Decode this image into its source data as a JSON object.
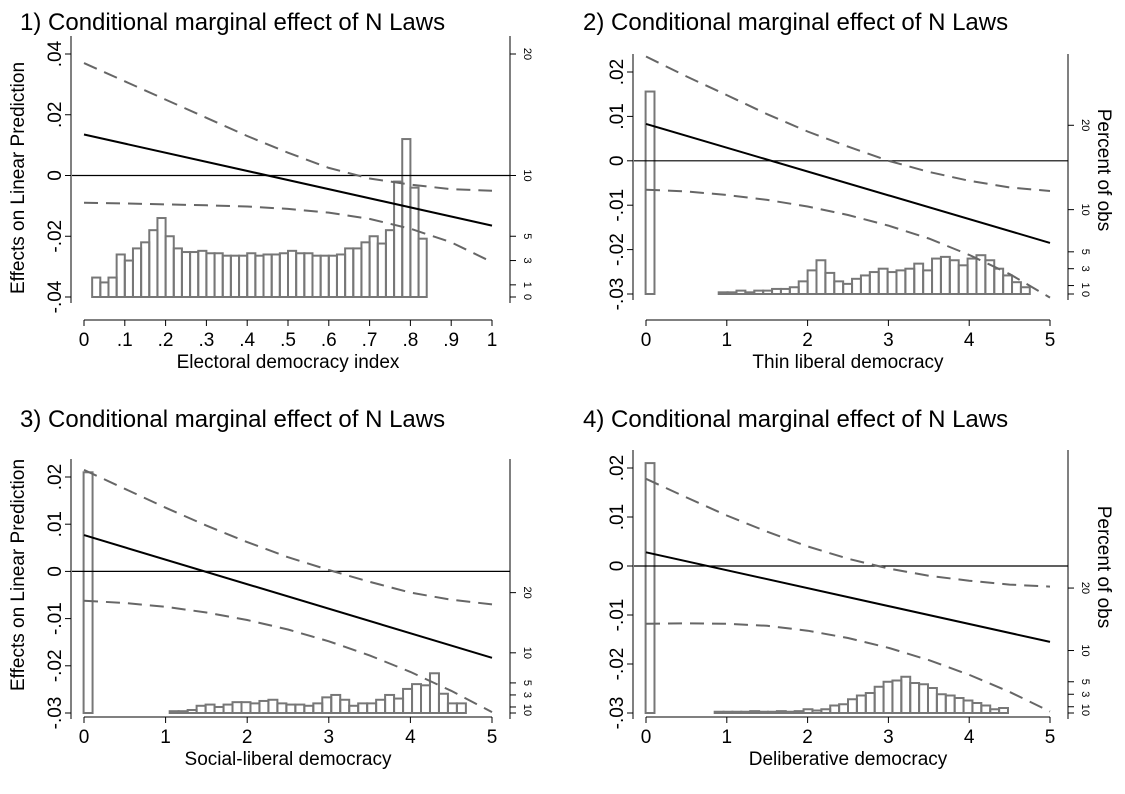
{
  "chart_data": [
    {
      "type": "line",
      "title": "1) Conditional marginal effect of N Laws",
      "xlabel": "Electoral democracy index",
      "ylabel": "Effects on Linear Prediction",
      "right_label": "",
      "xlim": [
        0,
        1
      ],
      "ylim": [
        -0.04,
        0.04
      ],
      "x_ticks": [
        0,
        0.1,
        0.2,
        0.3,
        0.4,
        0.5,
        0.6,
        0.7,
        0.8,
        0.9,
        1
      ],
      "x_tick_labels": [
        "0",
        ".1",
        ".2",
        ".3",
        ".4",
        ".5",
        ".6",
        ".7",
        ".8",
        ".9",
        "1"
      ],
      "y_ticks": [
        -0.04,
        -0.02,
        0,
        0.02,
        0.04
      ],
      "y_tick_labels": [
        "-.04",
        "-.02",
        "0",
        ".02",
        ".04"
      ],
      "right_ticks": [
        0,
        1,
        3,
        5,
        10,
        20
      ],
      "right_tick_labels": [
        "0",
        "1",
        "3",
        "5",
        "10",
        "20"
      ],
      "right_max": 20,
      "right_zero": -0.04,
      "right_top": 0.04,
      "effect_line": {
        "x": [
          0,
          1
        ],
        "y": [
          0.0135,
          -0.0165
        ]
      },
      "ci_upper": {
        "x": [
          0,
          0.1,
          0.2,
          0.3,
          0.4,
          0.5,
          0.6,
          0.7,
          0.8,
          0.9,
          1
        ],
        "y": [
          0.037,
          0.031,
          0.025,
          0.019,
          0.013,
          0.0075,
          0.0025,
          -0.001,
          -0.003,
          -0.0045,
          -0.005
        ]
      },
      "ci_lower": {
        "x": [
          0,
          0.1,
          0.2,
          0.3,
          0.4,
          0.5,
          0.6,
          0.7,
          0.8,
          0.9,
          1
        ],
        "y": [
          -0.009,
          -0.0092,
          -0.0095,
          -0.0098,
          -0.0102,
          -0.011,
          -0.0122,
          -0.0143,
          -0.0175,
          -0.022,
          -0.0285
        ]
      },
      "histogram": {
        "start": 0.02,
        "width": 0.02,
        "values": [
          1.6,
          1.2,
          1.6,
          3.5,
          3.0,
          4.0,
          4.5,
          5.5,
          6.5,
          5.0,
          4.0,
          3.7,
          3.7,
          3.8,
          3.6,
          3.6,
          3.4,
          3.4,
          3.4,
          3.6,
          3.4,
          3.5,
          3.5,
          3.6,
          3.8,
          3.6,
          3.6,
          3.4,
          3.4,
          3.4,
          3.5,
          4.0,
          4.0,
          4.5,
          5.0,
          4.4,
          5.5,
          9.5,
          13.0,
          9.0,
          4.8
        ]
      }
    },
    {
      "type": "line",
      "title": "2) Conditional marginal effect of N Laws",
      "xlabel": "Thin liberal democracy",
      "ylabel": "",
      "right_label": "Percent of obs",
      "xlim": [
        0,
        5
      ],
      "ylim": [
        -0.03,
        0.02
      ],
      "x_ticks": [
        0,
        1,
        2,
        3,
        4,
        5
      ],
      "x_tick_labels": [
        "0",
        "1",
        "2",
        "3",
        "4",
        "5"
      ],
      "y_ticks": [
        -0.03,
        -0.02,
        -0.01,
        0,
        0.01,
        0.02
      ],
      "y_tick_labels": [
        "-.03",
        "-.02",
        "-.01",
        "0",
        ".01",
        ".02"
      ],
      "right_ticks": [
        0,
        1,
        3,
        5,
        10,
        20
      ],
      "right_tick_labels": [
        "0",
        "1",
        "3",
        "5",
        "10",
        "20"
      ],
      "right_max": 20,
      "right_zero": -0.03,
      "right_top": 0.008,
      "effect_line": {
        "x": [
          0,
          5
        ],
        "y": [
          0.0083,
          -0.0185
        ]
      },
      "ci_upper": {
        "x": [
          0,
          0.5,
          1,
          1.5,
          2,
          2.5,
          3,
          3.5,
          4,
          4.5,
          5
        ],
        "y": [
          0.0235,
          0.019,
          0.0148,
          0.0105,
          0.0066,
          0.0032,
          0.0,
          -0.0025,
          -0.0045,
          -0.006,
          -0.0068
        ]
      },
      "ci_lower": {
        "x": [
          0,
          0.5,
          1,
          1.5,
          2,
          2.5,
          3,
          3.5,
          4,
          4.5,
          5
        ],
        "y": [
          -0.0065,
          -0.0069,
          -0.0077,
          -0.0088,
          -0.0103,
          -0.0122,
          -0.0146,
          -0.0175,
          -0.0212,
          -0.0255,
          -0.0308
        ]
      },
      "histogram": {
        "start": 0.05,
        "width": 0.11,
        "spike": {
          "x": 0.05,
          "value": 24
        },
        "bars_start": 0.9,
        "values": [
          0.2,
          0.2,
          0.4,
          0.2,
          0.4,
          0.4,
          0.6,
          0.6,
          0.8,
          1.5,
          2.8,
          4.0,
          2.5,
          1.5,
          1.2,
          1.8,
          2.2,
          2.6,
          3.0,
          2.6,
          2.8,
          3.0,
          3.6,
          2.8,
          4.2,
          4.4,
          4.0,
          3.4,
          4.2,
          4.6,
          4.0,
          3.0,
          2.2,
          1.4,
          0.8
        ]
      }
    },
    {
      "type": "line",
      "title": "3) Conditional marginal effect of N Laws",
      "xlabel": "Social-liberal democracy",
      "ylabel": "Effects on Linear Prediction",
      "right_label": "",
      "xlim": [
        0,
        5
      ],
      "ylim": [
        -0.03,
        0.02
      ],
      "x_ticks": [
        0,
        1,
        2,
        3,
        4,
        5
      ],
      "x_tick_labels": [
        "0",
        "1",
        "2",
        "3",
        "4",
        "5"
      ],
      "y_ticks": [
        -0.03,
        -0.02,
        -0.01,
        0,
        0.01,
        0.02
      ],
      "y_tick_labels": [
        "-.03",
        "-.02",
        "-.01",
        "0",
        ".01",
        ".02"
      ],
      "right_ticks": [
        0,
        1,
        3,
        5,
        10,
        20
      ],
      "right_tick_labels": [
        "0",
        "1",
        "3",
        "5",
        "10",
        "20"
      ],
      "right_max": 20,
      "right_zero": -0.03,
      "right_top": -0.0045,
      "effect_line": {
        "x": [
          0,
          5
        ],
        "y": [
          0.0077,
          -0.0183
        ]
      },
      "ci_upper": {
        "x": [
          0,
          0.5,
          1,
          1.5,
          2,
          2.5,
          3,
          3.5,
          4,
          4.5,
          5
        ],
        "y": [
          0.0215,
          0.0175,
          0.0135,
          0.0097,
          0.0062,
          0.003,
          0.0003,
          -0.0022,
          -0.0045,
          -0.006,
          -0.007
        ]
      },
      "ci_lower": {
        "x": [
          0,
          0.5,
          1,
          1.5,
          2,
          2.5,
          3,
          3.5,
          4,
          4.5,
          5
        ],
        "y": [
          -0.0062,
          -0.0067,
          -0.0075,
          -0.0087,
          -0.0103,
          -0.0123,
          -0.0148,
          -0.0178,
          -0.0213,
          -0.0253,
          -0.0298
        ]
      },
      "histogram": {
        "start": 0.05,
        "width": 0.11,
        "spike": {
          "x": 0.05,
          "value": 40
        },
        "bars_start": 1.05,
        "values": [
          0.3,
          0.3,
          0.5,
          1.2,
          1.4,
          1.0,
          1.4,
          1.8,
          1.8,
          1.6,
          2.0,
          2.2,
          1.6,
          1.4,
          1.4,
          1.2,
          1.6,
          2.6,
          3.0,
          2.2,
          1.2,
          1.6,
          1.6,
          2.2,
          3.0,
          2.4,
          4.0,
          4.8,
          4.6,
          6.6,
          3.2,
          1.6,
          1.6
        ]
      }
    },
    {
      "type": "line",
      "title": "4) Conditional marginal effect of N Laws",
      "xlabel": "Deliberative democracy",
      "ylabel": "",
      "right_label": "Percent of obs",
      "xlim": [
        0,
        5
      ],
      "ylim": [
        -0.03,
        0.02
      ],
      "x_ticks": [
        0,
        1,
        2,
        3,
        4,
        5
      ],
      "x_tick_labels": [
        "0",
        "1",
        "2",
        "3",
        "4",
        "5"
      ],
      "y_ticks": [
        -0.03,
        -0.02,
        -0.01,
        0,
        0.01,
        0.02
      ],
      "y_tick_labels": [
        "-.03",
        "-.02",
        "-.01",
        "0",
        ".01",
        ".02"
      ],
      "right_ticks": [
        0,
        1,
        3,
        5,
        10,
        20
      ],
      "right_tick_labels": [
        "0",
        "1",
        "3",
        "5",
        "10",
        "20"
      ],
      "right_max": 20,
      "right_zero": -0.03,
      "right_top": -0.0045,
      "effect_line": {
        "x": [
          0,
          5
        ],
        "y": [
          0.0028,
          -0.0155
        ]
      },
      "ci_upper": {
        "x": [
          0,
          0.5,
          1,
          1.5,
          2,
          2.5,
          3,
          3.5,
          4,
          4.5,
          5
        ],
        "y": [
          0.0178,
          0.014,
          0.0103,
          0.007,
          0.004,
          0.0015,
          -0.0005,
          -0.002,
          -0.003,
          -0.0038,
          -0.0042
        ]
      },
      "ci_lower": {
        "x": [
          0,
          0.5,
          1,
          1.5,
          2,
          2.5,
          3,
          3.5,
          4,
          4.5,
          5
        ],
        "y": [
          -0.0118,
          -0.0117,
          -0.0118,
          -0.0122,
          -0.0132,
          -0.0147,
          -0.0167,
          -0.0192,
          -0.0222,
          -0.0257,
          -0.0297
        ]
      },
      "histogram": {
        "start": 0.05,
        "width": 0.11,
        "spike": {
          "x": 0.05,
          "value": 40
        },
        "bars_start": 0.85,
        "values": [
          0.2,
          0.2,
          0.2,
          0.2,
          0.3,
          0.2,
          0.2,
          0.3,
          0.2,
          0.3,
          0.6,
          0.4,
          0.6,
          1.2,
          1.4,
          2.2,
          2.8,
          3.2,
          4.2,
          5.0,
          5.2,
          5.8,
          4.8,
          4.6,
          4.0,
          3.0,
          2.8,
          2.4,
          2.0,
          1.6,
          1.2,
          0.6,
          0.8
        ]
      }
    }
  ]
}
